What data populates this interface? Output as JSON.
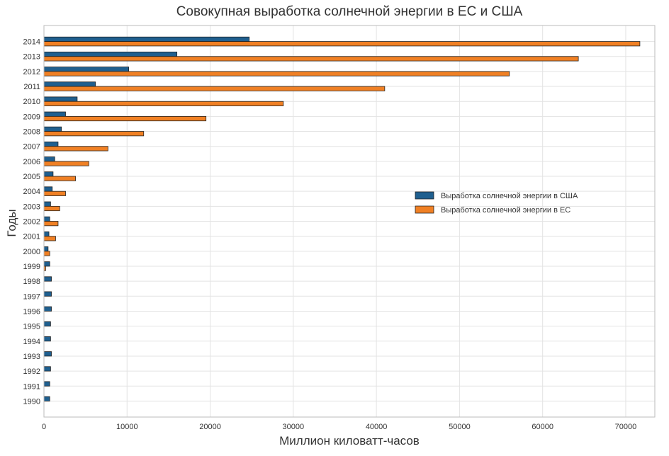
{
  "chart_data": {
    "type": "bar",
    "orientation": "horizontal",
    "title": "Совокупная выработка солнечной энергии в ЕС и США",
    "xlabel": "Миллион киловатт-часов",
    "ylabel": "Годы",
    "xlim": [
      0,
      73500
    ],
    "xticks": [
      0,
      10000,
      20000,
      30000,
      40000,
      50000,
      60000,
      70000
    ],
    "grid": true,
    "legend_position": "center-right",
    "categories": [
      "1990",
      "1991",
      "1992",
      "1993",
      "1994",
      "1995",
      "1996",
      "1997",
      "1998",
      "1999",
      "2000",
      "2001",
      "2002",
      "2003",
      "2004",
      "2005",
      "2006",
      "2007",
      "2008",
      "2009",
      "2010",
      "2011",
      "2012",
      "2013",
      "2014"
    ],
    "series": [
      {
        "name": "Выработка солнечной энергии в США",
        "color": "#1f5f8f",
        "values": [
          700,
          700,
          800,
          900,
          800,
          800,
          900,
          900,
          900,
          700,
          500,
          600,
          700,
          800,
          1000,
          1100,
          1300,
          1700,
          2100,
          2600,
          4000,
          6200,
          10200,
          16000,
          24700
        ]
      },
      {
        "name": "Выработка солнечной энергии в ЕС",
        "color": "#f08024",
        "values": [
          0,
          0,
          0,
          0,
          0,
          0,
          0,
          0,
          0,
          200,
          700,
          1400,
          1700,
          1900,
          2600,
          3800,
          5400,
          7700,
          12000,
          19500,
          28800,
          41000,
          56000,
          64300,
          71700
        ]
      }
    ]
  }
}
